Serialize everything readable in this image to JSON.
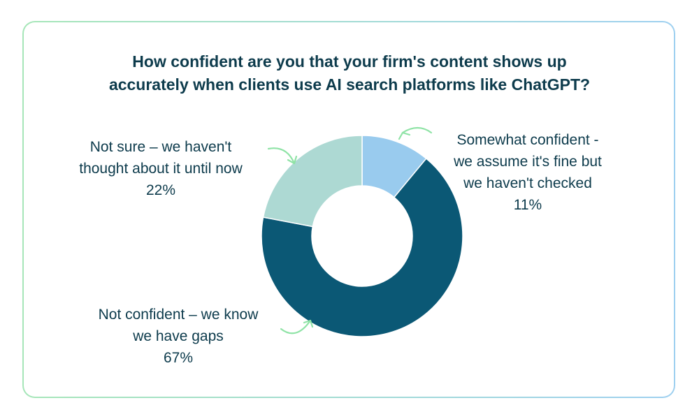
{
  "chart_data": {
    "type": "donut",
    "title_lines": [
      "How confident are you that your firm's content shows up",
      "accurately when clients use AI search platforms like ChatGPT?"
    ],
    "slices": [
      {
        "label_lines": [
          "Somewhat confident -",
          "we assume it's fine but",
          "we haven't checked"
        ],
        "value": 11,
        "value_label": "11%",
        "color": "#99cbee"
      },
      {
        "label_lines": [
          "Not confident – we know",
          "we have gaps"
        ],
        "value": 67,
        "value_label": "67%",
        "color": "#0b5875"
      },
      {
        "label_lines": [
          "Not sure – we haven't",
          "thought about it until now"
        ],
        "value": 22,
        "value_label": "22%",
        "color": "#add9d3"
      }
    ],
    "start": "12 o'clock, clockwise",
    "legend": "none",
    "arrow_color": "#8fe3a6"
  }
}
